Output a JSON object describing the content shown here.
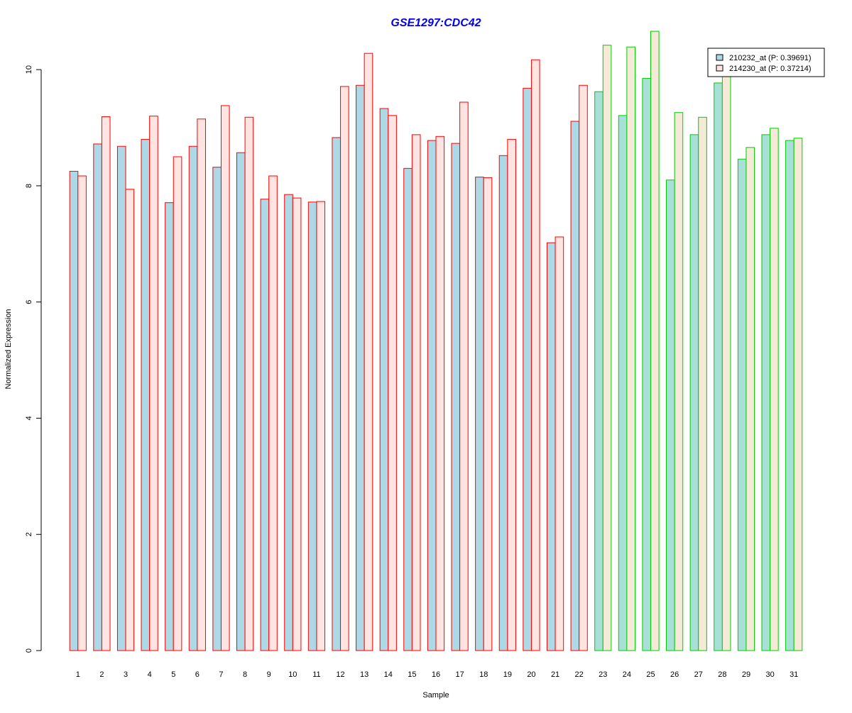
{
  "chart_data": {
    "type": "bar",
    "title": "GSE1297:CDC42",
    "xlabel": "Sample",
    "ylabel": "Normalized Expression",
    "ylim": [
      0,
      10.6
    ],
    "yticks": [
      0,
      2,
      4,
      6,
      8,
      10
    ],
    "categories": [
      "1",
      "2",
      "3",
      "4",
      "5",
      "6",
      "7",
      "8",
      "9",
      "10",
      "11",
      "12",
      "13",
      "14",
      "15",
      "16",
      "17",
      "18",
      "19",
      "20",
      "21",
      "22",
      "23",
      "24",
      "25",
      "26",
      "27",
      "28",
      "29",
      "30",
      "31"
    ],
    "group_edge_colors": [
      "#ff0000",
      "#00cc00"
    ],
    "sample_groups": [
      0,
      0,
      0,
      0,
      0,
      0,
      0,
      0,
      0,
      0,
      0,
      0,
      0,
      0,
      0,
      0,
      0,
      0,
      0,
      0,
      0,
      0,
      1,
      1,
      1,
      1,
      1,
      1,
      1,
      1,
      1
    ],
    "legend_position": "top-right",
    "grid": false,
    "series": [
      {
        "name": "210232_at (P: 0.39691)",
        "values": [
          8.25,
          8.72,
          8.68,
          8.8,
          7.71,
          8.68,
          8.32,
          8.57,
          7.77,
          7.85,
          7.72,
          8.83,
          9.73,
          9.33,
          8.3,
          8.78,
          8.73,
          8.15,
          8.52,
          9.68,
          7.02,
          9.11,
          9.62,
          9.21,
          9.85,
          8.1,
          8.88,
          9.77,
          8.46,
          8.88,
          8.78
        ],
        "fills": [
          "#add8e6",
          "#a8e0d8"
        ]
      },
      {
        "name": "214230_at (P: 0.37214)",
        "values": [
          8.17,
          9.19,
          7.94,
          9.2,
          8.5,
          9.15,
          9.38,
          9.18,
          8.17,
          7.79,
          7.73,
          9.71,
          10.28,
          9.21,
          8.88,
          8.85,
          9.44,
          8.14,
          8.8,
          10.17,
          7.12,
          9.73,
          10.42,
          10.39,
          10.66,
          9.26,
          9.18,
          10.25,
          8.66,
          8.99,
          8.82
        ],
        "fills": [
          "#ffe4e1",
          "#f5ead8"
        ]
      }
    ]
  }
}
